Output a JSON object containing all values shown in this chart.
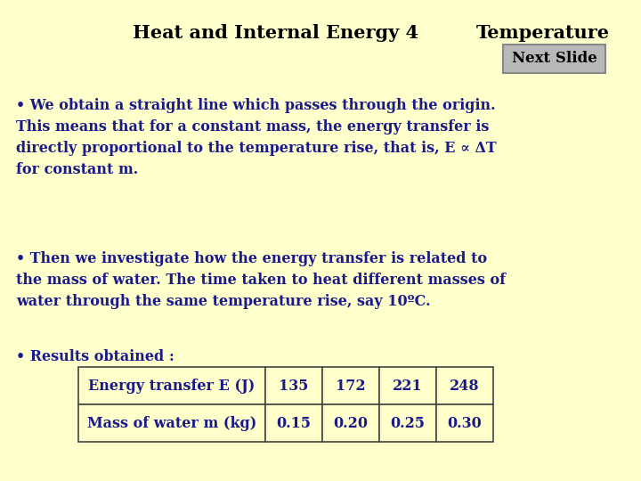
{
  "bg_color": "#ffffcc",
  "title_left": "Heat and Internal Energy 4",
  "title_right": "Temperature",
  "title_color": "#000000",
  "title_fontsize": 15,
  "next_slide_text": "Next Slide",
  "next_slide_bg": "#b8b8b8",
  "bullet1": "• We obtain a straight line which passes through the origin.\nThis means that for a constant mass, the energy transfer is\ndirectly proportional to the temperature rise, that is, E ∝ ΔT\nfor constant m.",
  "bullet2": "• Then we investigate how the energy transfer is related to\nthe mass of water. The time taken to heat different masses of\nwater through the same temperature rise, say 10ºC.",
  "bullet3": "• Results obtained :",
  "bullet_color": "#1a1a8c",
  "bullet_fontsize": 11.5,
  "table_headers": [
    "Energy transfer E (J)",
    "135",
    "172",
    "221",
    "248"
  ],
  "table_row2": [
    "Mass of water m (kg)",
    "0.15",
    "0.20",
    "0.25",
    "0.30"
  ],
  "table_color": "#1a1a8c",
  "table_fontsize": 11.5
}
